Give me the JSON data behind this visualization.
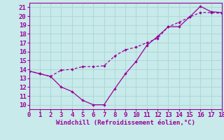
{
  "xlabel": "Windchill (Refroidissement éolien,°C)",
  "background_color": "#c8eaea",
  "line_color": "#990099",
  "grid_color": "#b0d8d8",
  "x_line1": [
    0,
    1,
    2,
    3,
    4,
    5,
    6,
    7,
    8,
    9,
    10,
    11,
    12,
    13,
    14,
    15,
    16,
    17,
    18
  ],
  "y_line1": [
    13.8,
    13.5,
    13.2,
    12.0,
    11.5,
    10.5,
    10.0,
    10.0,
    11.8,
    13.5,
    14.9,
    16.7,
    17.7,
    18.8,
    18.8,
    19.9,
    21.1,
    20.5,
    20.4
  ],
  "x_line2": [
    0,
    1,
    2,
    3,
    4,
    5,
    6,
    7,
    8,
    9,
    10,
    11,
    12,
    13,
    14,
    15,
    16,
    17,
    18
  ],
  "y_line2": [
    13.8,
    13.5,
    13.2,
    13.9,
    14.0,
    14.3,
    14.3,
    14.4,
    15.5,
    16.2,
    16.5,
    17.0,
    17.5,
    18.8,
    19.3,
    19.9,
    20.4,
    20.4,
    20.3
  ],
  "xlim": [
    0,
    18
  ],
  "ylim": [
    9.5,
    21.5
  ],
  "yticks": [
    10,
    11,
    12,
    13,
    14,
    15,
    16,
    17,
    18,
    19,
    20,
    21
  ],
  "xticks": [
    0,
    1,
    2,
    3,
    4,
    5,
    6,
    7,
    8,
    9,
    10,
    11,
    12,
    13,
    14,
    15,
    16,
    17,
    18
  ],
  "tick_fontsize": 6.5,
  "xlabel_fontsize": 6.5
}
